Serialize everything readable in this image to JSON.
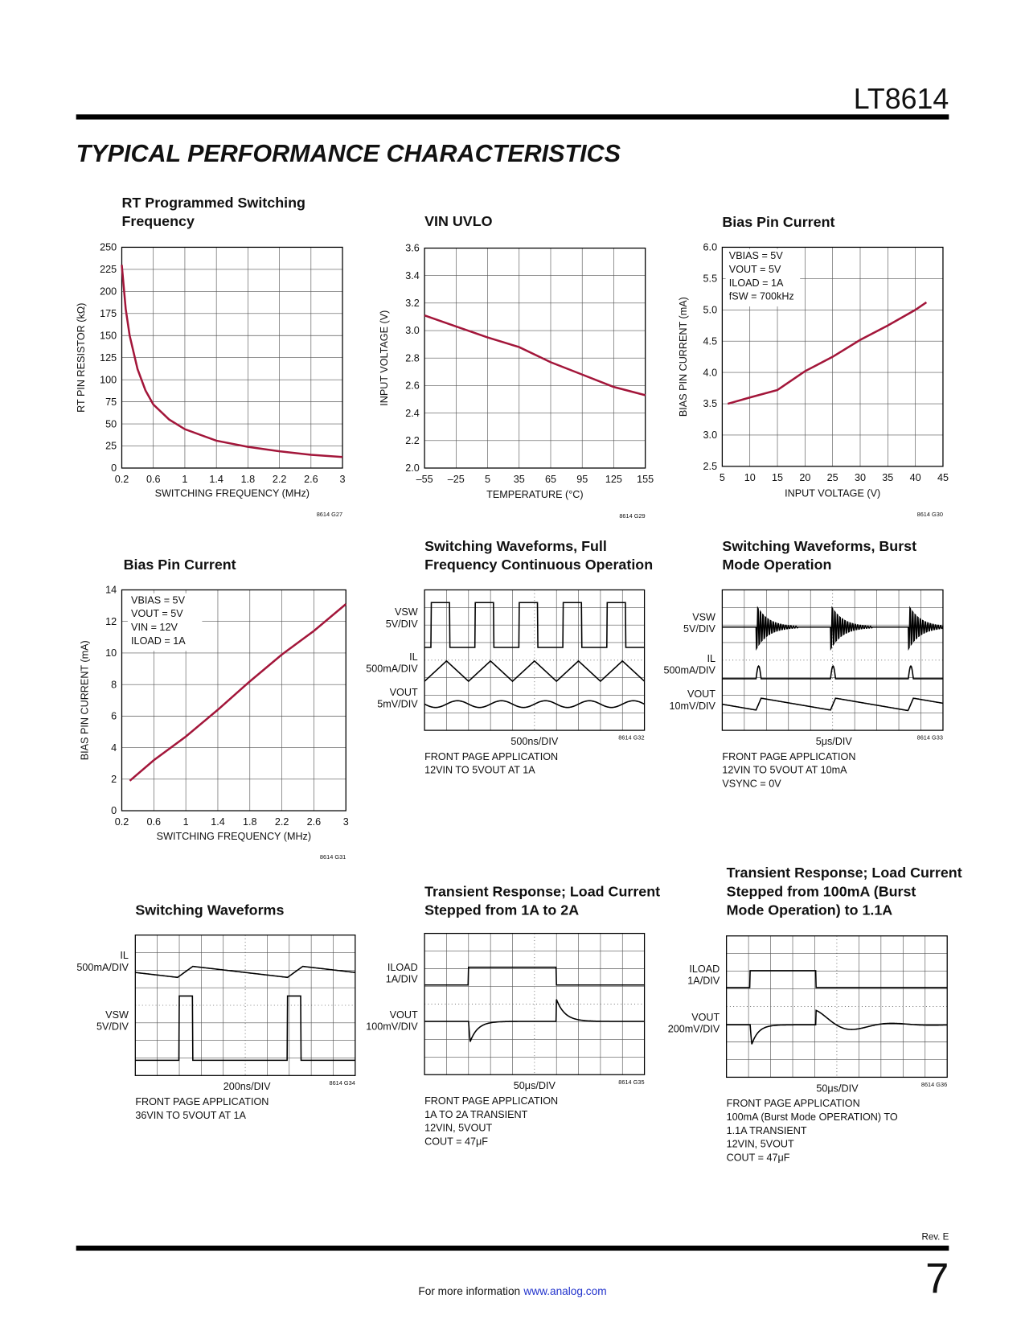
{
  "header": {
    "part": "LT8614",
    "section_title": "TYPICAL PERFORMANCE CHARACTERISTICS"
  },
  "chart_data": [
    {
      "type": "line",
      "title": "RT Programmed Switching Frequency",
      "x_label": "SWITCHING FREQUENCY (MHz)",
      "y_label": "RT PIN RESISTOR (kΩ)",
      "x": [
        0.2,
        0.25,
        0.3,
        0.4,
        0.5,
        0.6,
        0.8,
        1.0,
        1.4,
        1.8,
        2.2,
        2.6,
        3.0
      ],
      "values": [
        230,
        180,
        150,
        112,
        88,
        72,
        55,
        44,
        31,
        24,
        19,
        15,
        12.5
      ],
      "color": "#a3163a",
      "xlim": [
        0.2,
        3
      ],
      "xticks": [
        0.2,
        0.6,
        1,
        1.4,
        1.8,
        2.2,
        2.6,
        3
      ],
      "ylim": [
        0,
        250
      ],
      "yticks": [
        0,
        25,
        50,
        75,
        100,
        125,
        150,
        175,
        200,
        225,
        250
      ],
      "grid": true,
      "figure_id": "8614 G27"
    },
    {
      "type": "line",
      "title": "VIN UVLO",
      "x_label": "TEMPERATURE (°C)",
      "y_label": "INPUT VOLTAGE (V)",
      "x": [
        -55,
        -25,
        5,
        35,
        65,
        95,
        125,
        155
      ],
      "values": [
        3.11,
        3.03,
        2.95,
        2.88,
        2.77,
        2.68,
        2.59,
        2.53
      ],
      "color": "#a3163a",
      "xlim": [
        -55,
        155
      ],
      "xticks": [
        {
          "value": -55,
          "label": "–55"
        },
        {
          "value": -25,
          "label": "–25"
        },
        5,
        35,
        65,
        95,
        125,
        155
      ],
      "ylim": [
        2,
        3.6
      ],
      "yticks": [
        {
          "value": 2,
          "label": "2.0"
        },
        2.2,
        2.4,
        2.6,
        2.8,
        {
          "value": 3,
          "label": "3.0"
        },
        3.2,
        3.4,
        3.6
      ],
      "grid": true,
      "figure_id": "8614 G29"
    },
    {
      "type": "line",
      "title": "Bias Pin Current",
      "x_label": "INPUT VOLTAGE (V)",
      "y_label": "BIAS PIN CURRENT (mA)",
      "notes": [
        "VBIAS = 5V",
        "VOUT = 5V",
        "ILOAD = 1A",
        "fSW = 700kHz"
      ],
      "x": [
        6,
        10,
        15,
        20,
        25,
        30,
        35,
        40,
        42
      ],
      "values": [
        3.5,
        3.6,
        3.72,
        4.02,
        4.25,
        4.52,
        4.75,
        5.0,
        5.12
      ],
      "color": "#a3163a",
      "xlim": [
        5,
        45
      ],
      "xticks": [
        5,
        10,
        15,
        20,
        25,
        30,
        35,
        40,
        45
      ],
      "ylim": [
        2.5,
        6
      ],
      "yticks": [
        2.5,
        {
          "value": 3,
          "label": "3.0"
        },
        3.5,
        {
          "value": 4,
          "label": "4.0"
        },
        4.5,
        {
          "value": 5,
          "label": "5.0"
        },
        5.5,
        {
          "value": 6,
          "label": "6.0"
        }
      ],
      "grid": true,
      "figure_id": "8614 G30"
    },
    {
      "type": "line",
      "title": "Bias Pin Current",
      "x_label": "SWITCHING FREQUENCY (MHz)",
      "y_label": "BIAS PIN CURRENT (mA)",
      "notes": [
        "VBIAS = 5V",
        "VOUT = 5V",
        "VIN = 12V",
        "ILOAD = 1A"
      ],
      "x": [
        0.3,
        0.6,
        1.0,
        1.4,
        1.8,
        2.2,
        2.6,
        3.0
      ],
      "values": [
        1.9,
        3.2,
        4.7,
        6.4,
        8.2,
        9.9,
        11.4,
        13.1
      ],
      "color": "#a3163a",
      "xlim": [
        0.2,
        3
      ],
      "xticks": [
        0.2,
        0.6,
        1,
        1.4,
        1.8,
        2.2,
        2.6,
        3
      ],
      "ylim": [
        0,
        14
      ],
      "yticks": [
        0,
        2,
        4,
        6,
        8,
        10,
        12,
        14
      ],
      "grid": true,
      "figure_id": "8614 G31"
    }
  ],
  "scope_figures": [
    {
      "title": "Switching Waveforms, Full Frequency Continuous Operation",
      "channels": [
        {
          "name": "VSW",
          "scale": "5V/DIV"
        },
        {
          "name": "IL",
          "scale": "500mA/DIV"
        },
        {
          "name": "VOUT",
          "scale": "5mV/DIV"
        }
      ],
      "timebase": "500ns/DIV",
      "figure_id": "8614 G32",
      "caption": [
        "FRONT PAGE APPLICATION",
        "12VIN TO 5VOUT AT 1A"
      ]
    },
    {
      "title": "Switching Waveforms, Burst Mode Operation",
      "channels": [
        {
          "name": "VSW",
          "scale": "5V/DIV"
        },
        {
          "name": "IL",
          "scale": "500mA/DIV"
        },
        {
          "name": "VOUT",
          "scale": "10mV/DIV"
        }
      ],
      "timebase": "5μs/DIV",
      "figure_id": "8614 G33",
      "caption": [
        "FRONT PAGE APPLICATION",
        "12VIN TO 5VOUT AT 10mA",
        "VSYNC = 0V"
      ]
    },
    {
      "title": "Switching Waveforms",
      "channels": [
        {
          "name": "IL",
          "scale": "500mA/DIV"
        },
        {
          "name": "VSW",
          "scale": "5V/DIV"
        }
      ],
      "timebase": "200ns/DIV",
      "figure_id": "8614 G34",
      "caption": [
        "FRONT PAGE APPLICATION",
        "36VIN TO 5VOUT AT 1A"
      ]
    },
    {
      "title": "Transient Response; Load Current Stepped from 1A to 2A",
      "channels": [
        {
          "name": "ILOAD",
          "scale": "1A/DIV"
        },
        {
          "name": "VOUT",
          "scale": "100mV/DIV"
        }
      ],
      "timebase": "50μs/DIV",
      "figure_id": "8614 G35",
      "caption": [
        "FRONT PAGE APPLICATION",
        "1A TO 2A TRANSIENT",
        "12VIN, 5VOUT",
        "COUT = 47μF"
      ]
    },
    {
      "title": "Transient Response; Load Current Stepped from 100mA (Burst Mode Operation) to 1.1A",
      "channels": [
        {
          "name": "ILOAD",
          "scale": "1A/DIV"
        },
        {
          "name": "VOUT",
          "scale": "200mV/DIV"
        }
      ],
      "timebase": "50μs/DIV",
      "figure_id": "8614 G36",
      "caption": [
        "FRONT PAGE APPLICATION",
        "100mA (Burst Mode OPERATION) TO",
        "1.1A TRANSIENT",
        "12VIN, 5VOUT",
        "COUT = 47μF"
      ]
    }
  ],
  "footer": {
    "revision": "Rev. E",
    "info_text": "For more information",
    "link": "www.analog.com",
    "page_number": "7"
  }
}
